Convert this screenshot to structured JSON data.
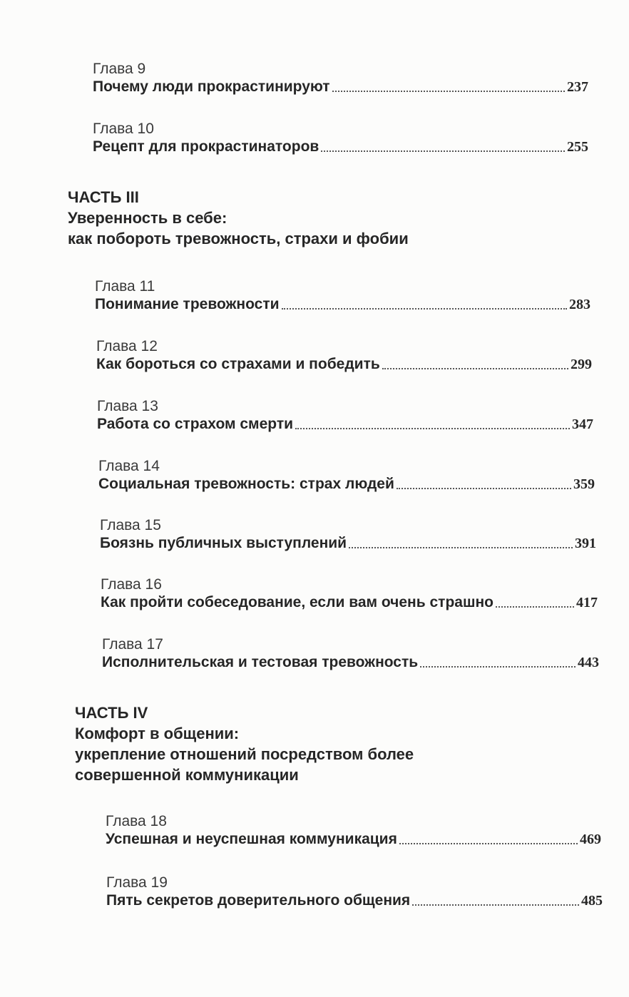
{
  "chapters": [
    {
      "label": "Глава 9",
      "title": "Почему люди прокрастинируют",
      "page": "237"
    },
    {
      "label": "Глава 10",
      "title": "Рецепт для прокрастинаторов",
      "page": "255"
    },
    {
      "label": "Глава 11",
      "title": "Понимание тревожности",
      "page": "283"
    },
    {
      "label": "Глава 12",
      "title": "Как бороться со страхами и победить",
      "page": "299"
    },
    {
      "label": "Глава 13",
      "title": "Работа со страхом смерти",
      "page": "347"
    },
    {
      "label": "Глава 14",
      "title": "Социальная тревожность: страх людей",
      "page": "359"
    },
    {
      "label": "Глава 15",
      "title": "Боязнь публичных выступлений",
      "page": "391"
    },
    {
      "label": "Глава 16",
      "title": "Как пройти собеседование, если вам очень страшно",
      "page": "417"
    },
    {
      "label": "Глава 17",
      "title": "Исполнительская и тестовая тревожность",
      "page": "443"
    },
    {
      "label": "Глава 18",
      "title": "Успешная и неуспешная коммуникация",
      "page": "469"
    },
    {
      "label": "Глава 19",
      "title": "Пять секретов доверительного общения",
      "page": "485"
    }
  ],
  "parts": [
    {
      "label": "ЧАСТЬ III",
      "lines": [
        "Уверенность в себе:",
        "как побороть тревожность, страхи и фобии"
      ]
    },
    {
      "label": "ЧАСТЬ IV",
      "lines": [
        "Комфорт в общении:",
        "укрепление отношений посредством более",
        "совершенной коммуникации"
      ]
    }
  ]
}
